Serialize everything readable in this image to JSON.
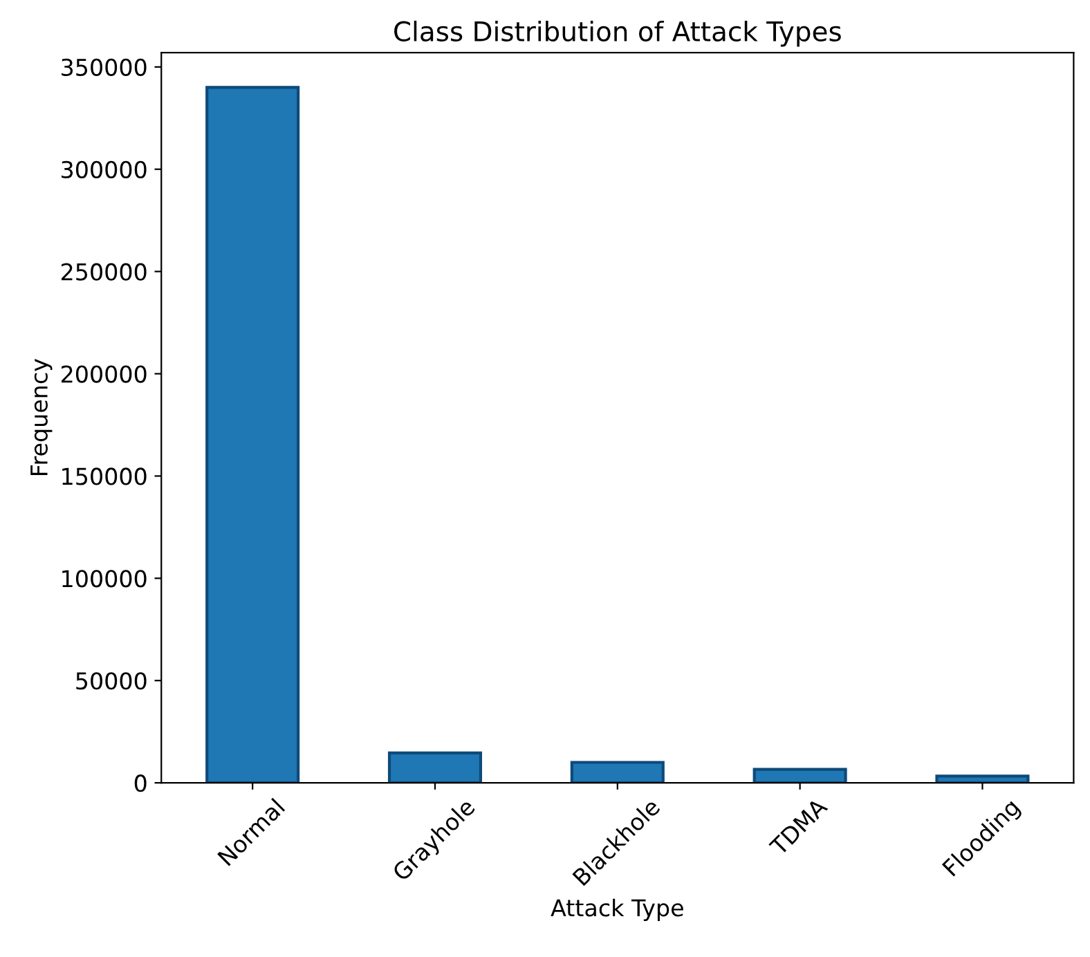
{
  "chart_data": {
    "type": "bar",
    "title": "Class Distribution of Attack Types",
    "xlabel": "Attack Type",
    "ylabel": "Frequency",
    "categories": [
      "Normal",
      "Grayhole",
      "Blackhole",
      "TDMA",
      "Flooding"
    ],
    "values": [
      340000,
      14600,
      10000,
      6600,
      3300
    ],
    "color": "#1f77b4",
    "ylim": [
      0,
      357000
    ],
    "yticks": [
      0,
      50000,
      100000,
      150000,
      200000,
      250000,
      300000,
      350000
    ],
    "grid": false,
    "legend": false
  }
}
